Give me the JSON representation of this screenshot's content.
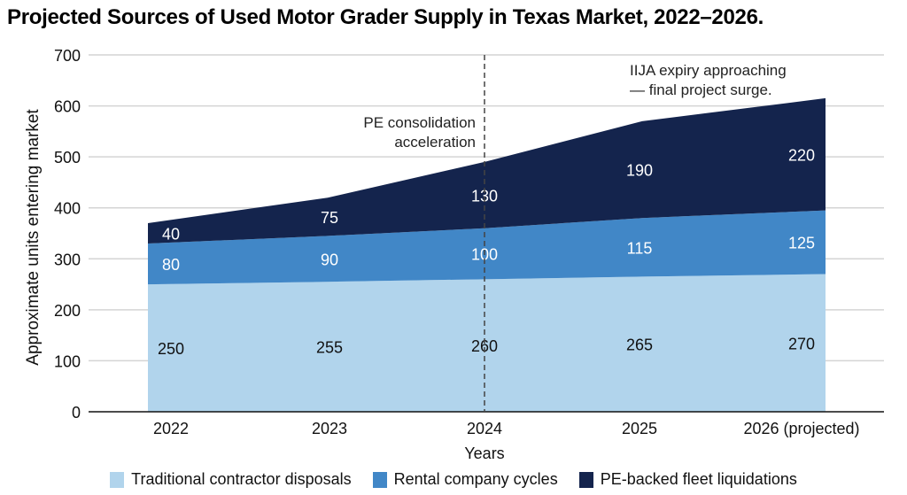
{
  "chart_data": {
    "type": "area",
    "stacked": true,
    "title": "Projected Sources of Used Motor Grader Supply in Texas Market, 2022–2026.",
    "xlabel": "Years",
    "ylabel": "Approximate units entering market",
    "categories": [
      "2022",
      "2023",
      "2024",
      "2025",
      "2026 (projected)"
    ],
    "ylim": [
      0,
      700
    ],
    "yticks": [
      0,
      100,
      200,
      300,
      400,
      500,
      600,
      700
    ],
    "grid": true,
    "legend_position": "bottom",
    "series": [
      {
        "name": "Traditional contractor disposals",
        "values": [
          250,
          255,
          260,
          265,
          270
        ],
        "color": "#b1d4ec",
        "label_color": "#111111"
      },
      {
        "name": "Rental company cycles",
        "values": [
          80,
          90,
          100,
          115,
          125
        ],
        "color": "#4187c7",
        "label_color": "#ffffff"
      },
      {
        "name": "PE-backed fleet liquidations",
        "values": [
          40,
          75,
          130,
          190,
          220
        ],
        "color": "#14244d",
        "label_color": "#ffffff"
      }
    ],
    "annotations": [
      {
        "category": "2024",
        "type": "vertical-dashed-line",
        "lines": [
          "PE consolidation",
          "acceleration"
        ]
      },
      {
        "category": "2026 (projected)",
        "lines": [
          "IIJA expiry approaching",
          "— final project surge."
        ]
      }
    ]
  }
}
